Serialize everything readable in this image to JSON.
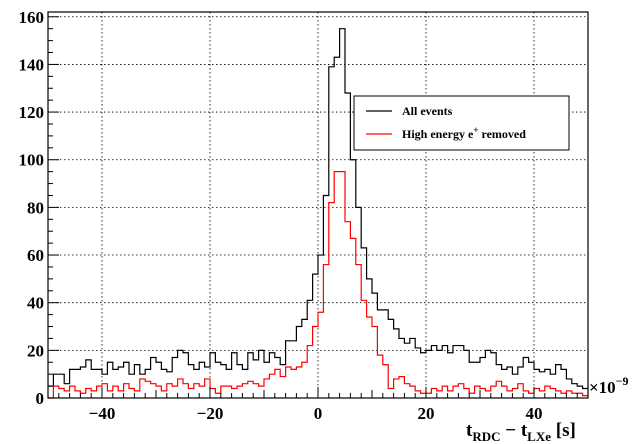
{
  "chart_data": {
    "type": "line",
    "xlabel_main": "t",
    "xlabel_sub1": "RDC",
    "xlabel_mid": " − t",
    "xlabel_sub2": "LXe",
    "xlabel_unit": " [s]",
    "ylabel": "",
    "x_multiplier_base": "×10",
    "x_multiplier_exp": "−9",
    "xlim": [
      -50,
      50
    ],
    "ylim": [
      0,
      162
    ],
    "x_tick_labels": [
      "−40",
      "−20",
      "0",
      "20",
      "40"
    ],
    "x_tick_values": [
      -40,
      -20,
      0,
      20,
      40
    ],
    "y_tick_labels": [
      "0",
      "20",
      "40",
      "60",
      "80",
      "100",
      "120",
      "140",
      "160"
    ],
    "y_tick_values": [
      0,
      20,
      40,
      60,
      80,
      100,
      120,
      140,
      160
    ],
    "grid": true,
    "legend_position": "upper-right",
    "bin_edges_start": -50,
    "bin_width": 1,
    "series": [
      {
        "name": "All events",
        "name_extra_base": "",
        "name_extra_sup": "",
        "name_extra_tail": "",
        "color": "#000000",
        "values": [
          5,
          10,
          10,
          6,
          12,
          12,
          13,
          16,
          12,
          12,
          10,
          15,
          12,
          13,
          15,
          10,
          14,
          10,
          12,
          17,
          15,
          12,
          11,
          17,
          20,
          19,
          14,
          12,
          15,
          13,
          19,
          15,
          14,
          12,
          19,
          14,
          12,
          19,
          16,
          20,
          15,
          19,
          17,
          14,
          24,
          24,
          30,
          33,
          41,
          52,
          60,
          85,
          139,
          143,
          155,
          128,
          100,
          80,
          63,
          50,
          44,
          37,
          37,
          33,
          29,
          25,
          23,
          25,
          21,
          19,
          20,
          22,
          20,
          22,
          19,
          22,
          22,
          20,
          15,
          15,
          17,
          20,
          19,
          14,
          12,
          13,
          10,
          13,
          17,
          15,
          12,
          11,
          12,
          10,
          14,
          12,
          8,
          6,
          5,
          4
        ]
      },
      {
        "name": "High energy e",
        "name_extra_base": "",
        "name_extra_sup": "+",
        "name_extra_tail": " removed",
        "color": "#ff0000",
        "values": [
          0,
          5,
          4,
          3,
          5,
          3,
          2,
          4,
          3,
          5,
          6,
          3,
          5,
          3,
          6,
          4,
          3,
          8,
          7,
          6,
          5,
          3,
          6,
          5,
          8,
          6,
          4,
          6,
          5,
          8,
          4,
          2,
          5,
          5,
          4,
          5,
          6,
          7,
          6,
          5,
          8,
          10,
          12,
          9,
          13,
          12,
          13,
          15,
          22,
          30,
          36,
          56,
          82,
          95,
          95,
          74,
          67,
          56,
          41,
          34,
          30,
          18,
          14,
          4,
          8,
          9,
          6,
          5,
          3,
          2,
          2,
          4,
          3,
          5,
          3,
          5,
          6,
          4,
          2,
          5,
          4,
          3,
          5,
          7,
          5,
          3,
          4,
          6,
          3,
          2,
          4,
          3,
          5,
          4,
          3,
          2,
          3,
          2,
          2,
          1
        ]
      }
    ]
  }
}
